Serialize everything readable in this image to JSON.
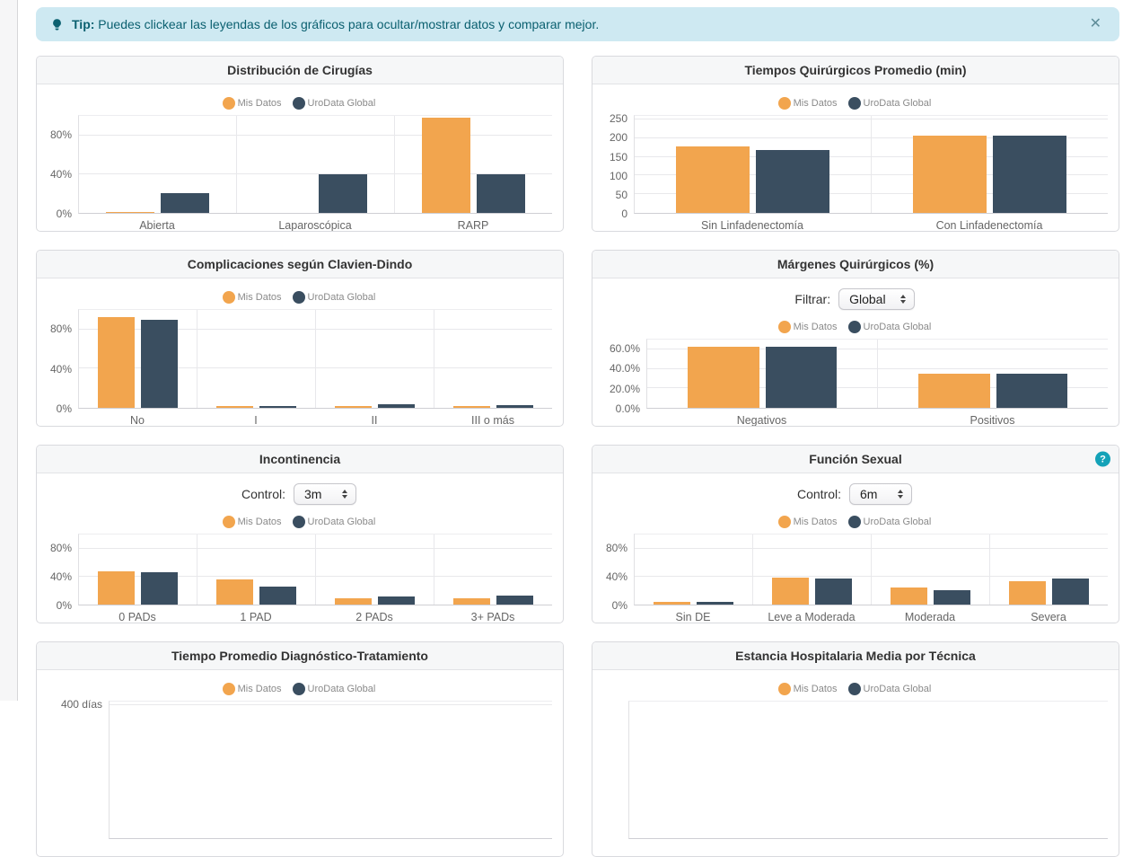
{
  "tip": {
    "label": "Tip:",
    "text": "Puedes clickear las leyendas de los gráficos para ocultar/mostrar datos y comparar mejor.",
    "close": "✕"
  },
  "colors": {
    "mine": "#F2A54E",
    "global": "#3A4E60",
    "tip_bg": "#CEE9F2",
    "tip_text": "#0B6070",
    "help_bg": "#14A2B8"
  },
  "chart_data": [
    {
      "type": "bar",
      "title": "Distribución de Cirugías",
      "categories": [
        "Abierta",
        "Laparoscópica",
        "RARP"
      ],
      "series": [
        {
          "name": "Mis Datos",
          "values": [
            1,
            0,
            98
          ]
        },
        {
          "name": "UroData Global",
          "values": [
            20,
            40,
            40
          ]
        }
      ],
      "yticks": [
        {
          "label": "80%",
          "value": 80
        },
        {
          "label": "40%",
          "value": 40
        },
        {
          "label": "0%",
          "value": 0
        }
      ],
      "ymax": 100,
      "legend_position": "top",
      "grid": true
    },
    {
      "type": "bar",
      "title": "Tiempos Quirúrgicos Promedio (min)",
      "categories": [
        "Sin Linfadenectomía",
        "Con Linfadenectomía"
      ],
      "series": [
        {
          "name": "Mis Datos",
          "values": [
            178,
            207
          ]
        },
        {
          "name": "UroData Global",
          "values": [
            168,
            206
          ]
        }
      ],
      "yticks": [
        {
          "label": "250",
          "value": 250
        },
        {
          "label": "200",
          "value": 200
        },
        {
          "label": "150",
          "value": 150
        },
        {
          "label": "100",
          "value": 100
        },
        {
          "label": "50",
          "value": 50
        },
        {
          "label": "0",
          "value": 0
        }
      ],
      "ymax": 260,
      "legend_position": "top",
      "grid": true
    },
    {
      "type": "bar",
      "title": "Complicaciones según Clavien-Dindo",
      "categories": [
        "No",
        "I",
        "II",
        "III o más"
      ],
      "series": [
        {
          "name": "Mis Datos",
          "values": [
            93,
            1.5,
            2,
            1.5
          ]
        },
        {
          "name": "UroData Global",
          "values": [
            90,
            1.5,
            3.5,
            2.5
          ]
        }
      ],
      "yticks": [
        {
          "label": "80%",
          "value": 80
        },
        {
          "label": "40%",
          "value": 40
        },
        {
          "label": "0%",
          "value": 0
        }
      ],
      "ymax": 100,
      "legend_position": "top",
      "grid": true
    },
    {
      "type": "bar",
      "title": "Márgenes Quirúrgicos (%)",
      "control": {
        "label": "Filtrar:",
        "value": "Global"
      },
      "categories": [
        "Negativos",
        "Positivos"
      ],
      "series": [
        {
          "name": "Mis Datos",
          "values": [
            63,
            35
          ]
        },
        {
          "name": "UroData Global",
          "values": [
            63,
            35
          ]
        }
      ],
      "yticks": [
        {
          "label": "60.0%",
          "value": 60
        },
        {
          "label": "40.0%",
          "value": 40
        },
        {
          "label": "20.0%",
          "value": 20
        },
        {
          "label": "0.0%",
          "value": 0
        }
      ],
      "ymax": 70,
      "legend_position": "top",
      "grid": true
    },
    {
      "type": "bar",
      "title": "Incontinencia",
      "control": {
        "label": "Control:",
        "value": "3m"
      },
      "categories": [
        "0 PADs",
        "1 PAD",
        "2 PADs",
        "3+ PADs"
      ],
      "series": [
        {
          "name": "Mis Datos",
          "values": [
            48,
            36,
            9,
            9
          ]
        },
        {
          "name": "UroData Global",
          "values": [
            46,
            26,
            12,
            13
          ]
        }
      ],
      "yticks": [
        {
          "label": "80%",
          "value": 80
        },
        {
          "label": "40%",
          "value": 40
        },
        {
          "label": "0%",
          "value": 0
        }
      ],
      "ymax": 100,
      "legend_position": "top",
      "grid": true
    },
    {
      "type": "bar",
      "title": "Función Sexual",
      "help": "?",
      "control": {
        "label": "Control:",
        "value": "6m"
      },
      "categories": [
        "Sin DE",
        "Leve a Moderada",
        "Moderada",
        "Severa"
      ],
      "series": [
        {
          "name": "Mis Datos",
          "values": [
            4,
            39,
            24,
            33
          ]
        },
        {
          "name": "UroData Global",
          "values": [
            4,
            37,
            21,
            37
          ]
        }
      ],
      "yticks": [
        {
          "label": "80%",
          "value": 80
        },
        {
          "label": "40%",
          "value": 40
        },
        {
          "label": "0%",
          "value": 0
        }
      ],
      "ymax": 100,
      "legend_position": "top",
      "grid": true
    },
    {
      "type": "bar",
      "title": "Tiempo Promedio Diagnóstico-Tratamiento",
      "categories": [],
      "series": [
        {
          "name": "Mis Datos",
          "values": []
        },
        {
          "name": "UroData Global",
          "values": []
        }
      ],
      "yticks": [
        {
          "label": "400 días",
          "value": 400
        }
      ],
      "ymax": 410,
      "legend_position": "top",
      "grid": true,
      "note_visible": "partially cut off at page bottom"
    },
    {
      "type": "bar",
      "title": "Estancia Hospitalaria Media por Técnica",
      "categories": [],
      "series": [
        {
          "name": "Mis Datos",
          "values": []
        },
        {
          "name": "UroData Global",
          "values": []
        }
      ],
      "yticks": [],
      "ymax": 100,
      "legend_position": "top",
      "grid": true,
      "note_visible": "partially cut off at page bottom"
    }
  ]
}
